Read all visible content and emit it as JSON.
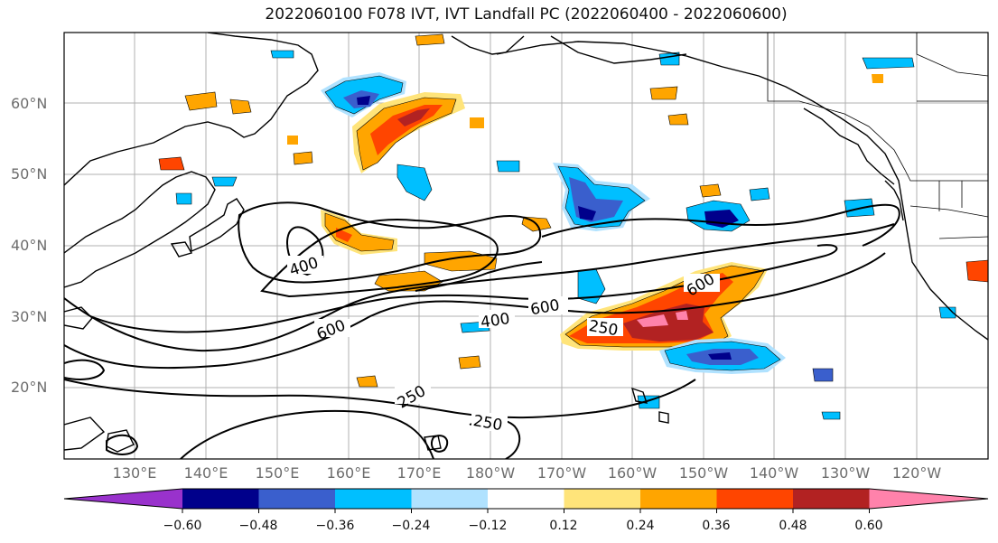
{
  "figure": {
    "title": "2022060100 F078 IVT, IVT Landfall PC (2022060400 - 2022060600)"
  },
  "axes": {
    "lat_labels": [
      "60°N",
      "50°N",
      "40°N",
      "30°N",
      "20°N"
    ],
    "lon_labels": [
      "130°E",
      "140°E",
      "150°E",
      "160°E",
      "170°E",
      "180°W",
      "170°W",
      "160°W",
      "150°W",
      "140°W",
      "130°W",
      "120°W"
    ],
    "grid": true
  },
  "contours": {
    "labels": [
      "400",
      "600",
      "400",
      "600",
      "600",
      "250",
      "250",
      "250"
    ]
  },
  "colorbar": {
    "tick_labels": [
      "−0.60",
      "−0.48",
      "−0.36",
      "−0.24",
      "−0.12",
      "0.12",
      "0.24",
      "0.36",
      "0.48",
      "0.60"
    ],
    "colors": [
      "#9932cc",
      "#00008b",
      "#3a5fcd",
      "#00bfff",
      "#b0e2ff",
      "#ffffff",
      "#ffe47a",
      "#ffa500",
      "#ff4500",
      "#b22222",
      "#ff82ab"
    ]
  }
}
